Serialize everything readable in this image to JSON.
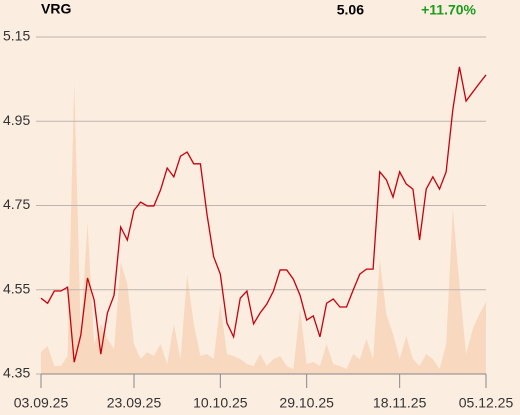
{
  "chart_data": {
    "type": "line",
    "title": "VRG",
    "last_price": 5.06,
    "change": "+11.70%",
    "categories": [
      "03.09.25",
      null,
      null,
      null,
      null,
      null,
      null,
      null,
      null,
      null,
      null,
      null,
      null,
      null,
      "23.09.25",
      null,
      null,
      null,
      null,
      null,
      null,
      null,
      null,
      null,
      null,
      null,
      null,
      "10.10.25",
      null,
      null,
      null,
      null,
      null,
      null,
      null,
      null,
      null,
      null,
      null,
      null,
      "29.10.25",
      null,
      null,
      null,
      null,
      null,
      null,
      null,
      null,
      null,
      null,
      null,
      null,
      null,
      "18.11.25",
      null,
      null,
      null,
      null,
      null,
      null,
      null,
      null,
      null,
      null,
      null,
      null,
      "05.12.25"
    ],
    "series": [
      {
        "type": "line",
        "color": "#c8000a",
        "values": [
          4.53,
          4.518,
          4.547,
          4.547,
          4.556,
          4.378,
          4.443,
          4.578,
          4.526,
          4.397,
          4.495,
          4.537,
          4.699,
          4.668,
          4.739,
          4.758,
          4.749,
          4.749,
          4.787,
          4.839,
          4.818,
          4.867,
          4.877,
          4.849,
          4.849,
          4.728,
          4.628,
          4.587,
          4.471,
          4.438,
          4.53,
          4.547,
          4.469,
          4.495,
          4.516,
          4.547,
          4.597,
          4.597,
          4.575,
          4.537,
          4.478,
          4.488,
          4.438,
          4.518,
          4.528,
          4.509,
          4.509,
          4.549,
          4.587,
          4.599,
          4.599,
          4.83,
          4.811,
          4.77,
          4.83,
          4.801,
          4.789,
          4.668,
          4.789,
          4.818,
          4.789,
          4.83,
          4.977,
          5.079,
          4.998,
          5.019,
          5.04,
          5.06
        ]
      },
      {
        "type": "area",
        "color": "#f8d9bf",
        "values": [
          22,
          28,
          8,
          8,
          18,
          292,
          40,
          152,
          30,
          50,
          35,
          25,
          112,
          90,
          30,
          15,
          22,
          18,
          30,
          10,
          50,
          15,
          99,
          50,
          18,
          20,
          15,
          70,
          20,
          18,
          15,
          10,
          8,
          20,
          8,
          15,
          18,
          8,
          5,
          65,
          10,
          12,
          8,
          30,
          10,
          8,
          5,
          20,
          15,
          35,
          15,
          115,
          60,
          40,
          15,
          38,
          15,
          8,
          20,
          15,
          5,
          30,
          165,
          90,
          20,
          45,
          60,
          72
        ]
      }
    ],
    "ylim": [
      4.35,
      5.15
    ],
    "yticks": [
      4.35,
      4.55,
      4.75,
      4.95,
      5.15
    ],
    "grid": true
  }
}
